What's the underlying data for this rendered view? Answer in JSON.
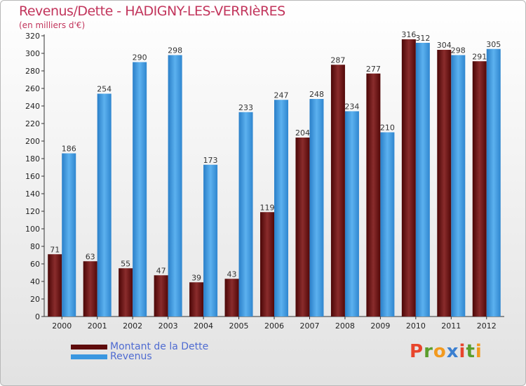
{
  "chart_data": {
    "type": "bar",
    "title": "Revenus/Dette - HADIGNY-LES-VERRIèRES",
    "subtitle": "(en milliers d'€)",
    "categories": [
      "2000",
      "2001",
      "2002",
      "2003",
      "2004",
      "2005",
      "2006",
      "2007",
      "2008",
      "2009",
      "2010",
      "2011",
      "2012"
    ],
    "series": [
      {
        "name": "Montant de la Dette",
        "color": "#7a1a1a",
        "values": [
          71,
          63,
          55,
          47,
          39,
          43,
          119,
          204,
          287,
          277,
          316,
          304,
          291
        ]
      },
      {
        "name": "Revenus",
        "color": "#3a97e0",
        "values": [
          186,
          254,
          290,
          298,
          173,
          233,
          247,
          248,
          234,
          210,
          312,
          298,
          305
        ]
      }
    ],
    "ylim": [
      0,
      320
    ],
    "yticks": [
      0,
      20,
      40,
      60,
      80,
      100,
      120,
      140,
      160,
      180,
      200,
      220,
      240,
      260,
      280,
      300,
      320
    ],
    "grid": false,
    "legend_position": "bottom-left"
  },
  "logo": {
    "letters": [
      "P",
      "r",
      "o",
      "x",
      "i",
      "t",
      "i"
    ],
    "colors": [
      "#e8452c",
      "#5b9e2c",
      "#f29a1f",
      "#3b7fd0",
      "#e8452c",
      "#5b9e2c",
      "#f29a1f"
    ]
  }
}
